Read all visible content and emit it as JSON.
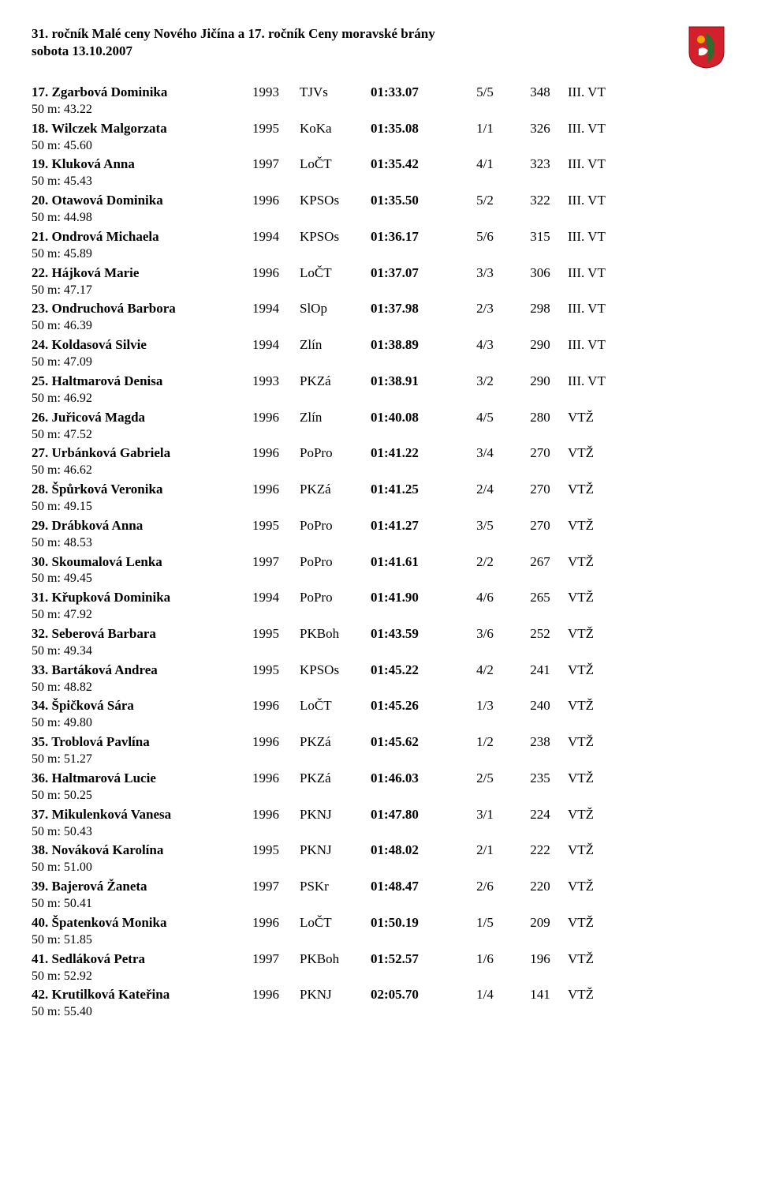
{
  "header": {
    "title_line1": "31. ročník Malé ceny Nového Jičína a 17. ročník Ceny moravské brány",
    "title_line2": "sobota 13.10.2007"
  },
  "crest_colors": {
    "shield": "#d4202c",
    "accent1": "#f2a900",
    "accent2": "#2d6b2f",
    "accent3": "#ffffff"
  },
  "results": [
    {
      "place": "17.",
      "name": "Zgarbová Dominika",
      "year": "1993",
      "club": "TJVs",
      "time": "01:33.07",
      "pos": "5/5",
      "pts": "348",
      "class": "III. VT",
      "split": "50 m: 43.22"
    },
    {
      "place": "18.",
      "name": "Wilczek Malgorzata",
      "year": "1995",
      "club": "KoKa",
      "time": "01:35.08",
      "pos": "1/1",
      "pts": "326",
      "class": "III. VT",
      "split": "50 m: 45.60"
    },
    {
      "place": "19.",
      "name": "Kluková Anna",
      "year": "1997",
      "club": "LoČT",
      "time": "01:35.42",
      "pos": "4/1",
      "pts": "323",
      "class": "III. VT",
      "split": "50 m: 45.43"
    },
    {
      "place": "20.",
      "name": "Otawová Dominika",
      "year": "1996",
      "club": "KPSOs",
      "time": "01:35.50",
      "pos": "5/2",
      "pts": "322",
      "class": "III. VT",
      "split": "50 m: 44.98"
    },
    {
      "place": "21.",
      "name": "Ondrová Michaela",
      "year": "1994",
      "club": "KPSOs",
      "time": "01:36.17",
      "pos": "5/6",
      "pts": "315",
      "class": "III. VT",
      "split": "50 m: 45.89"
    },
    {
      "place": "22.",
      "name": "Hájková Marie",
      "year": "1996",
      "club": "LoČT",
      "time": "01:37.07",
      "pos": "3/3",
      "pts": "306",
      "class": "III. VT",
      "split": "50 m: 47.17"
    },
    {
      "place": "23.",
      "name": "Ondruchová Barbora",
      "year": "1994",
      "club": "SlOp",
      "time": "01:37.98",
      "pos": "2/3",
      "pts": "298",
      "class": "III. VT",
      "split": "50 m: 46.39"
    },
    {
      "place": "24.",
      "name": "Koldasová Silvie",
      "year": "1994",
      "club": "Zlín",
      "time": "01:38.89",
      "pos": "4/3",
      "pts": "290",
      "class": "III. VT",
      "split": "50 m: 47.09"
    },
    {
      "place": "25.",
      "name": "Haltmarová Denisa",
      "year": "1993",
      "club": "PKZá",
      "time": "01:38.91",
      "pos": "3/2",
      "pts": "290",
      "class": "III. VT",
      "split": "50 m: 46.92"
    },
    {
      "place": "26.",
      "name": "Juřicová Magda",
      "year": "1996",
      "club": "Zlín",
      "time": "01:40.08",
      "pos": "4/5",
      "pts": "280",
      "class": "VTŽ",
      "split": "50 m: 47.52"
    },
    {
      "place": "27.",
      "name": "Urbánková Gabriela",
      "year": "1996",
      "club": "PoPro",
      "time": "01:41.22",
      "pos": "3/4",
      "pts": "270",
      "class": "VTŽ",
      "split": "50 m: 46.62"
    },
    {
      "place": "28.",
      "name": "Špůrková Veronika",
      "year": "1996",
      "club": "PKZá",
      "time": "01:41.25",
      "pos": "2/4",
      "pts": "270",
      "class": "VTŽ",
      "split": "50 m: 49.15"
    },
    {
      "place": "29.",
      "name": "Drábková Anna",
      "year": "1995",
      "club": "PoPro",
      "time": "01:41.27",
      "pos": "3/5",
      "pts": "270",
      "class": "VTŽ",
      "split": "50 m: 48.53"
    },
    {
      "place": "30.",
      "name": "Skoumalová Lenka",
      "year": "1997",
      "club": "PoPro",
      "time": "01:41.61",
      "pos": "2/2",
      "pts": "267",
      "class": "VTŽ",
      "split": "50 m: 49.45"
    },
    {
      "place": "31.",
      "name": "Křupková Dominika",
      "year": "1994",
      "club": "PoPro",
      "time": "01:41.90",
      "pos": "4/6",
      "pts": "265",
      "class": "VTŽ",
      "split": "50 m: 47.92"
    },
    {
      "place": "32.",
      "name": "Seberová Barbara",
      "year": "1995",
      "club": "PKBoh",
      "time": "01:43.59",
      "pos": "3/6",
      "pts": "252",
      "class": "VTŽ",
      "split": "50 m: 49.34"
    },
    {
      "place": "33.",
      "name": "Bartáková Andrea",
      "year": "1995",
      "club": "KPSOs",
      "time": "01:45.22",
      "pos": "4/2",
      "pts": "241",
      "class": "VTŽ",
      "split": "50 m: 48.82"
    },
    {
      "place": "34.",
      "name": "Špičková Sára",
      "year": "1996",
      "club": "LoČT",
      "time": "01:45.26",
      "pos": "1/3",
      "pts": "240",
      "class": "VTŽ",
      "split": "50 m: 49.80"
    },
    {
      "place": "35.",
      "name": "Troblová Pavlína",
      "year": "1996",
      "club": "PKZá",
      "time": "01:45.62",
      "pos": "1/2",
      "pts": "238",
      "class": "VTŽ",
      "split": "50 m: 51.27"
    },
    {
      "place": "36.",
      "name": "Haltmarová Lucie",
      "year": "1996",
      "club": "PKZá",
      "time": "01:46.03",
      "pos": "2/5",
      "pts": "235",
      "class": "VTŽ",
      "split": "50 m: 50.25"
    },
    {
      "place": "37.",
      "name": "Mikulenková Vanesa",
      "year": "1996",
      "club": "PKNJ",
      "time": "01:47.80",
      "pos": "3/1",
      "pts": "224",
      "class": "VTŽ",
      "split": "50 m: 50.43"
    },
    {
      "place": "38.",
      "name": "Nováková Karolína",
      "year": "1995",
      "club": "PKNJ",
      "time": "01:48.02",
      "pos": "2/1",
      "pts": "222",
      "class": "VTŽ",
      "split": "50 m: 51.00"
    },
    {
      "place": "39.",
      "name": "Bajerová Žaneta",
      "year": "1997",
      "club": "PSKr",
      "time": "01:48.47",
      "pos": "2/6",
      "pts": "220",
      "class": "VTŽ",
      "split": "50 m: 50.41"
    },
    {
      "place": "40.",
      "name": "Špatenková Monika",
      "year": "1996",
      "club": "LoČT",
      "time": "01:50.19",
      "pos": "1/5",
      "pts": "209",
      "class": "VTŽ",
      "split": "50 m: 51.85"
    },
    {
      "place": "41.",
      "name": "Sedláková Petra",
      "year": "1997",
      "club": "PKBoh",
      "time": "01:52.57",
      "pos": "1/6",
      "pts": "196",
      "class": "VTŽ",
      "split": "50 m: 52.92"
    },
    {
      "place": "42.",
      "name": "Krutilková Kateřina",
      "year": "1996",
      "club": "PKNJ",
      "time": "02:05.70",
      "pos": "1/4",
      "pts": "141",
      "class": "VTŽ",
      "split": "50 m: 55.40"
    }
  ]
}
